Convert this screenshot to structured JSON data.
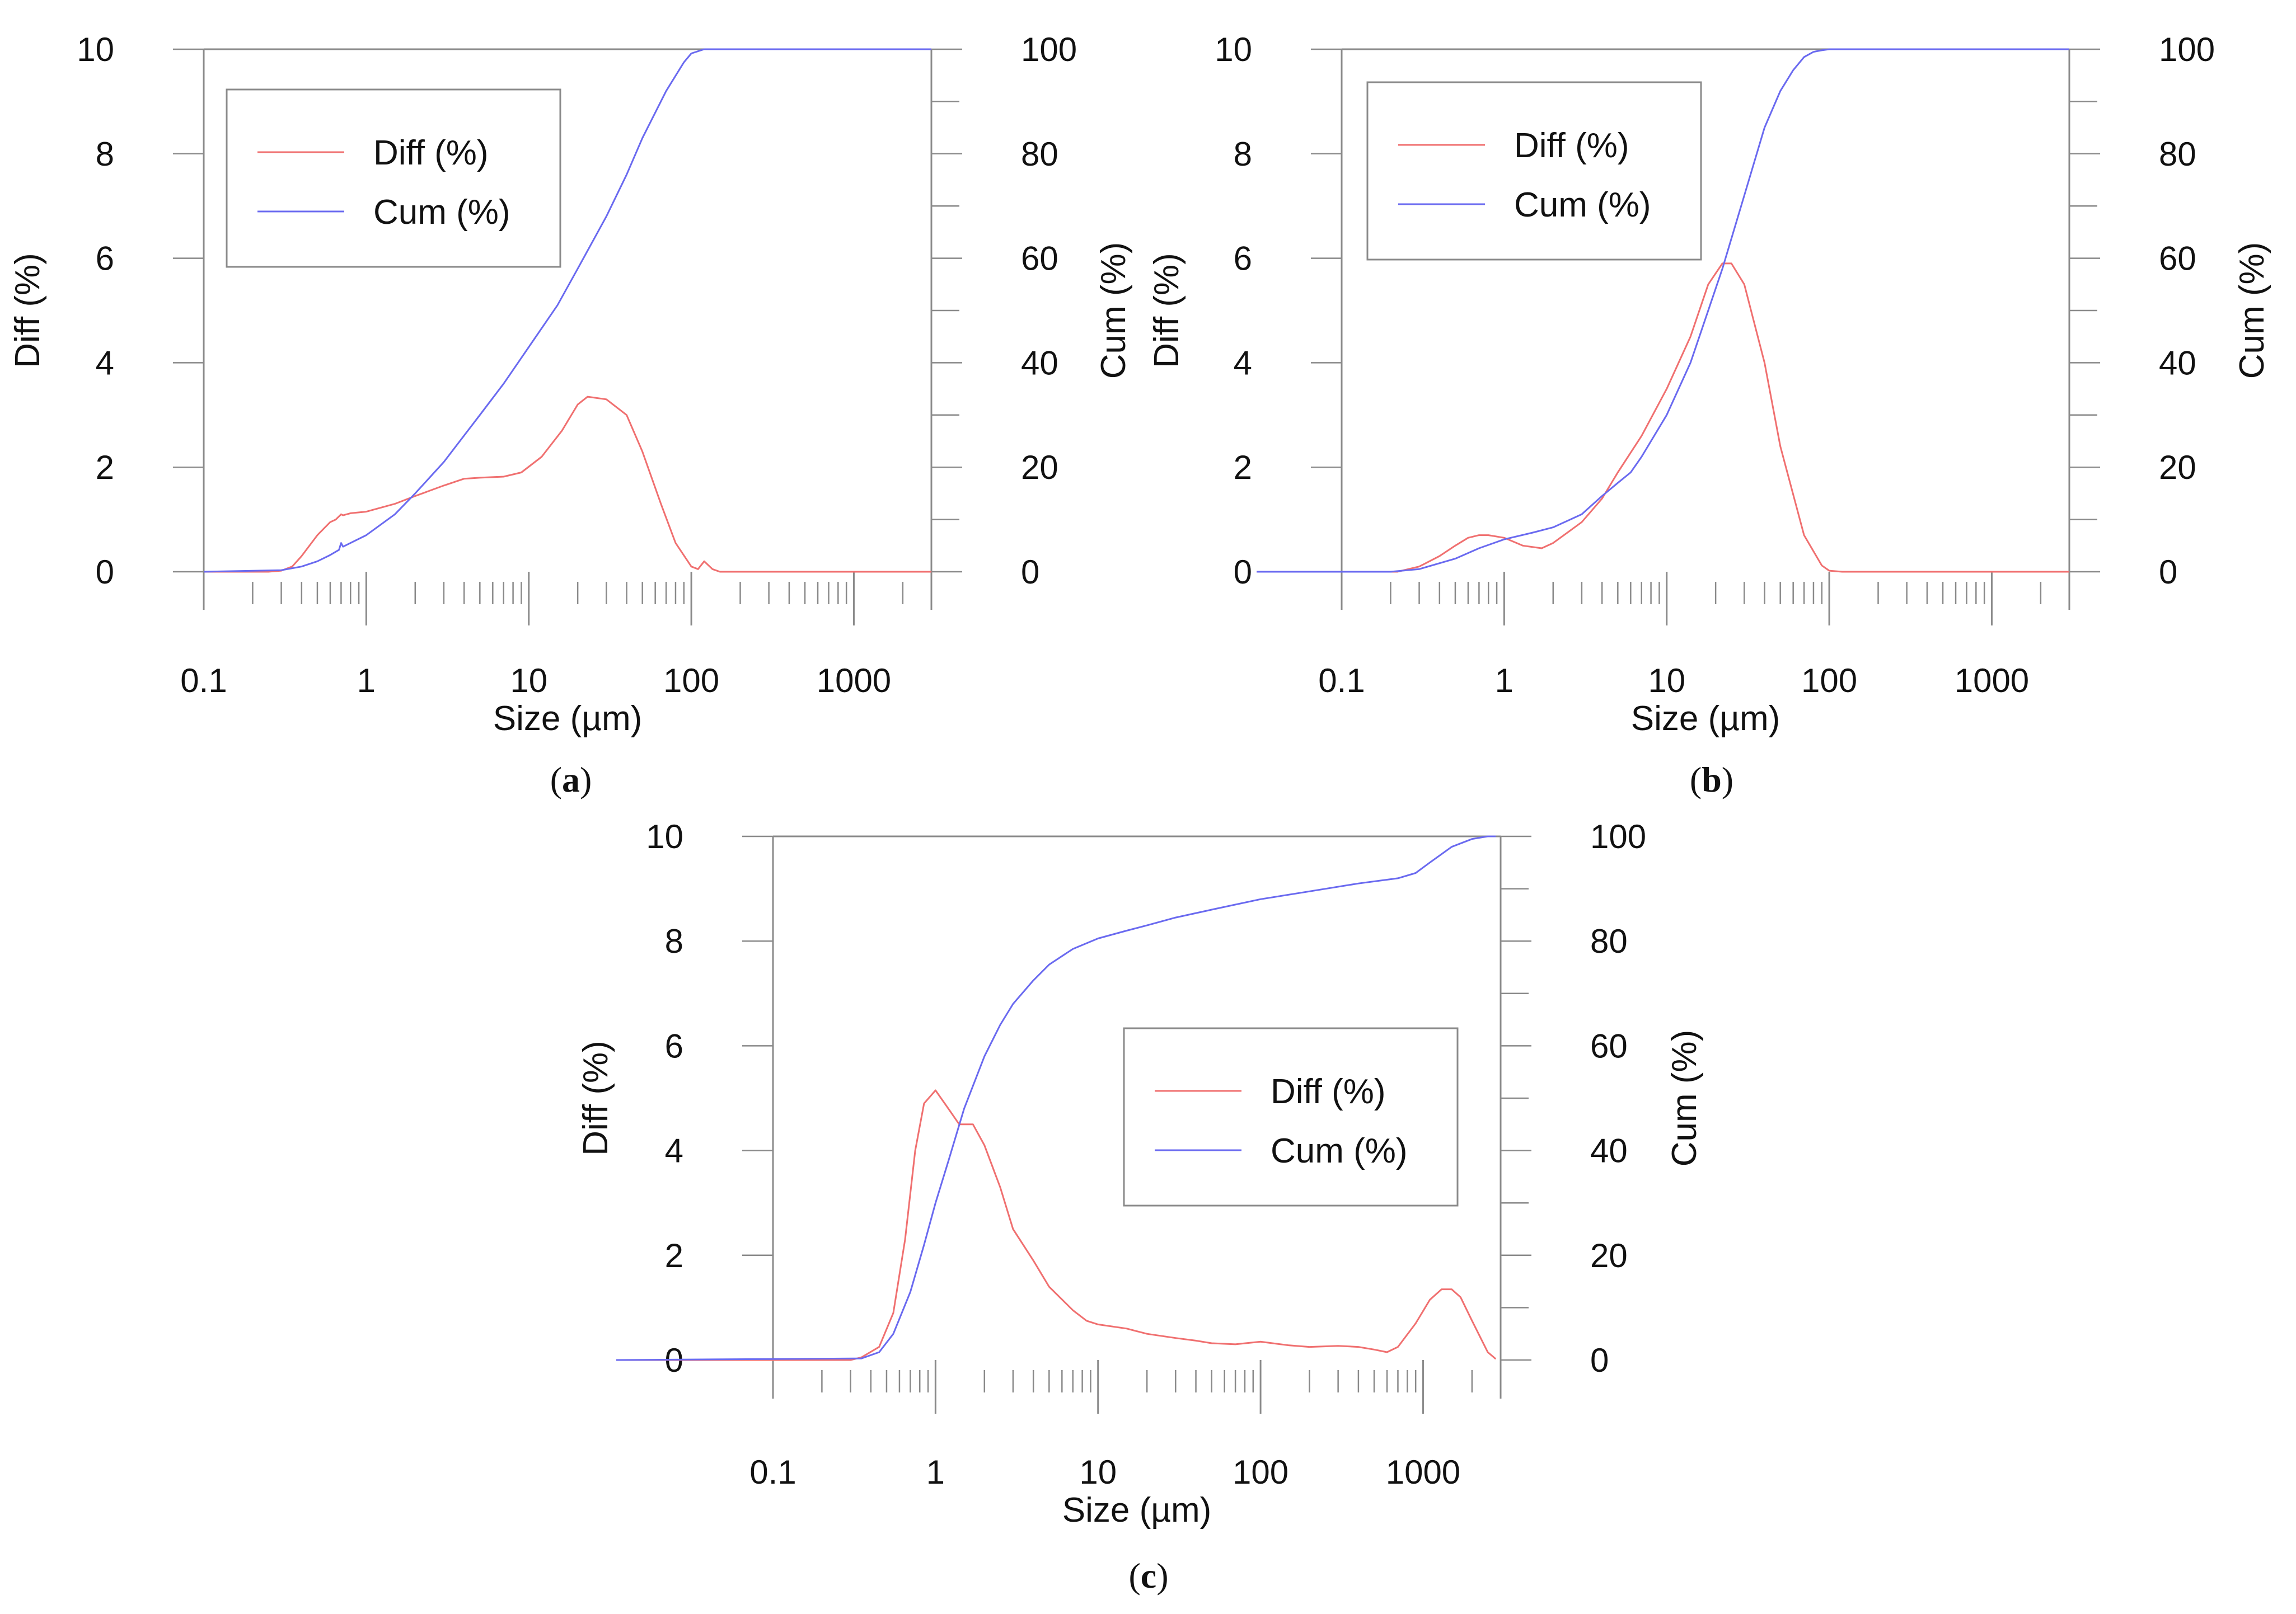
{
  "chart_data": [
    {
      "id": "a",
      "type": "line",
      "caption_letter": "a",
      "xlabel": "Size (µm)",
      "ylabel_left": "Diff (%)",
      "ylabel_right": "Cum (%)",
      "xscale": "log",
      "xlim": [
        0.1,
        3000
      ],
      "ylim_left": [
        0,
        10
      ],
      "ylim_right": [
        0,
        100
      ],
      "x_tick_labels": [
        {
          "value": 0.1,
          "label": "0.1"
        },
        {
          "value": 1,
          "label": "1"
        },
        {
          "value": 10,
          "label": "10"
        },
        {
          "value": 100,
          "label": "100"
        },
        {
          "value": 1000,
          "label": "1000"
        }
      ],
      "y_left_tick_labels": [
        {
          "value": 0,
          "label": "0"
        },
        {
          "value": 2,
          "label": "2"
        },
        {
          "value": 4,
          "label": "4"
        },
        {
          "value": 6,
          "label": "6"
        },
        {
          "value": 8,
          "label": "8"
        },
        {
          "value": 10,
          "label": "10"
        }
      ],
      "y_right_tick_labels": [
        {
          "value": 0,
          "label": "0"
        },
        {
          "value": 20,
          "label": "20"
        },
        {
          "value": 40,
          "label": "40"
        },
        {
          "value": 60,
          "label": "60"
        },
        {
          "value": 80,
          "label": "80"
        },
        {
          "value": 100,
          "label": "100"
        }
      ],
      "legend": {
        "placement": "top-left",
        "entries": [
          {
            "label": "Diff (%)",
            "series": "diff"
          },
          {
            "label": "Cum (%)",
            "series": "cum"
          }
        ]
      },
      "series": [
        {
          "name": "Diff (%)",
          "key": "diff",
          "axis": "left",
          "color": "#f07070",
          "x": [
            0.1,
            0.25,
            0.3,
            0.35,
            0.4,
            0.5,
            0.6,
            0.65,
            0.7,
            0.72,
            0.8,
            1.0,
            1.5,
            2.0,
            3.0,
            4.0,
            5.0,
            7.0,
            9.0,
            12.0,
            16.0,
            20.0,
            23.0,
            30.0,
            40.0,
            50.0,
            65.0,
            80.0,
            100.0,
            110.0,
            120.0,
            135.0,
            150.0,
            200.0,
            3000.0
          ],
          "y": [
            0,
            0,
            0.02,
            0.1,
            0.3,
            0.7,
            0.95,
            1.0,
            1.1,
            1.08,
            1.12,
            1.15,
            1.3,
            1.45,
            1.65,
            1.78,
            1.8,
            1.82,
            1.9,
            2.2,
            2.7,
            3.2,
            3.35,
            3.3,
            3.0,
            2.3,
            1.3,
            0.55,
            0.1,
            0.05,
            0.2,
            0.05,
            0,
            0,
            0
          ]
        },
        {
          "name": "Cum (%)",
          "key": "cum",
          "axis": "right",
          "color": "#6a6af0",
          "x": [
            0.1,
            0.3,
            0.4,
            0.5,
            0.6,
            0.68,
            0.7,
            0.72,
            1.0,
            1.5,
            2.0,
            3.0,
            5.0,
            7.0,
            10.0,
            15.0,
            20.0,
            30.0,
            40.0,
            50.0,
            70.0,
            90.0,
            100.0,
            120.0,
            3000.0
          ],
          "y": [
            0,
            0.3,
            1.0,
            2.0,
            3.2,
            4.2,
            5.5,
            4.8,
            7.0,
            11.0,
            15.0,
            21.0,
            30.0,
            36.0,
            43.0,
            51.0,
            58.0,
            68.0,
            76.0,
            83.0,
            92.0,
            97.5,
            99.2,
            100,
            100
          ]
        }
      ]
    },
    {
      "id": "b",
      "type": "line",
      "caption_letter": "b",
      "xlabel": "Size (µm)",
      "ylabel_left": "Diff (%)",
      "ylabel_right": "Cum (%)",
      "xscale": "log",
      "xlim": [
        0.1,
        3000
      ],
      "ylim_left": [
        0,
        10
      ],
      "ylim_right": [
        0,
        100
      ],
      "x_tick_labels": [
        {
          "value": 0.1,
          "label": "0.1"
        },
        {
          "value": 1,
          "label": "1"
        },
        {
          "value": 10,
          "label": "10"
        },
        {
          "value": 100,
          "label": "100"
        },
        {
          "value": 1000,
          "label": "1000"
        }
      ],
      "y_left_tick_labels": [
        {
          "value": 0,
          "label": "0"
        },
        {
          "value": 2,
          "label": "2"
        },
        {
          "value": 4,
          "label": "4"
        },
        {
          "value": 6,
          "label": "6"
        },
        {
          "value": 8,
          "label": "8"
        },
        {
          "value": 10,
          "label": "10"
        }
      ],
      "y_right_tick_labels": [
        {
          "value": 0,
          "label": "0"
        },
        {
          "value": 20,
          "label": "20"
        },
        {
          "value": 40,
          "label": "40"
        },
        {
          "value": 60,
          "label": "60"
        },
        {
          "value": 80,
          "label": "80"
        },
        {
          "value": 100,
          "label": "100"
        }
      ],
      "legend": {
        "placement": "top-left",
        "entries": [
          {
            "label": "Diff (%)",
            "series": "diff"
          },
          {
            "label": "Cum (%)",
            "series": "cum"
          }
        ]
      },
      "series": [
        {
          "name": "Diff (%)",
          "key": "diff",
          "axis": "left",
          "color": "#f07070",
          "x": [
            0.03,
            0.22,
            0.3,
            0.4,
            0.5,
            0.6,
            0.7,
            0.8,
            1.0,
            1.3,
            1.7,
            2.0,
            3.0,
            4.0,
            5.0,
            7.0,
            10.0,
            14.0,
            18.0,
            22.0,
            25.0,
            30.0,
            40.0,
            50.0,
            70.0,
            90.0,
            100.0,
            120.0,
            3000.0
          ],
          "y": [
            0,
            0,
            0.1,
            0.3,
            0.5,
            0.65,
            0.7,
            0.7,
            0.65,
            0.5,
            0.45,
            0.55,
            0.95,
            1.4,
            1.9,
            2.6,
            3.5,
            4.5,
            5.5,
            5.9,
            5.9,
            5.5,
            4.0,
            2.4,
            0.7,
            0.12,
            0.02,
            0,
            0
          ]
        },
        {
          "name": "Cum (%)",
          "key": "cum",
          "axis": "right",
          "color": "#6a6af0",
          "x": [
            0.03,
            0.2,
            0.3,
            0.5,
            0.7,
            1.0,
            1.5,
            2.0,
            3.0,
            4.0,
            5.0,
            6.0,
            7.0,
            10.0,
            14.0,
            18.0,
            22.0,
            30.0,
            40.0,
            50.0,
            60.0,
            70.0,
            80.0,
            90.0,
            100.0,
            120.0,
            3000.0
          ],
          "y": [
            0,
            0,
            0.5,
            2.5,
            4.5,
            6.2,
            7.5,
            8.5,
            11.0,
            14.5,
            17.0,
            19.0,
            22.0,
            30.0,
            40.0,
            50.0,
            58.0,
            72.0,
            85.0,
            92.0,
            96.0,
            98.5,
            99.5,
            99.8,
            100,
            100,
            100
          ]
        }
      ]
    },
    {
      "id": "c",
      "type": "line",
      "caption_letter": "c",
      "xlabel": "Size (µm)",
      "ylabel_left": "Diff (%)",
      "ylabel_right": "Cum (%)",
      "xscale": "log",
      "xlim": [
        0.1,
        3000
      ],
      "ylim_left": [
        0,
        10
      ],
      "ylim_right": [
        0,
        100
      ],
      "x_tick_labels": [
        {
          "value": 0.1,
          "label": "0.1"
        },
        {
          "value": 1,
          "label": "1"
        },
        {
          "value": 10,
          "label": "10"
        },
        {
          "value": 100,
          "label": "100"
        },
        {
          "value": 1000,
          "label": "1000"
        }
      ],
      "y_left_tick_labels": [
        {
          "value": 0,
          "label": "0"
        },
        {
          "value": 2,
          "label": "2"
        },
        {
          "value": 4,
          "label": "4"
        },
        {
          "value": 6,
          "label": "6"
        },
        {
          "value": 8,
          "label": "8"
        },
        {
          "value": 10,
          "label": "10"
        }
      ],
      "y_right_tick_labels": [
        {
          "value": 0,
          "label": "0"
        },
        {
          "value": 20,
          "label": "20"
        },
        {
          "value": 40,
          "label": "40"
        },
        {
          "value": 60,
          "label": "60"
        },
        {
          "value": 80,
          "label": "80"
        },
        {
          "value": 100,
          "label": "100"
        }
      ],
      "legend": {
        "placement": "center-right",
        "entries": [
          {
            "label": "Diff (%)",
            "series": "diff"
          },
          {
            "label": "Cum (%)",
            "series": "cum"
          }
        ]
      },
      "series": [
        {
          "name": "Diff (%)",
          "key": "diff",
          "axis": "left",
          "color": "#f07070",
          "x": [
            0.01,
            0.3,
            0.35,
            0.45,
            0.55,
            0.65,
            0.75,
            0.85,
            1.0,
            1.2,
            1.4,
            1.7,
            2.0,
            2.5,
            3.0,
            4.0,
            5.0,
            7.0,
            8.5,
            10.0,
            15.0,
            20.0,
            30.0,
            40.0,
            50.0,
            70.0,
            100.0,
            150.0,
            200.0,
            300.0,
            400.0,
            500.0,
            600.0,
            700.0,
            900.0,
            1100.0,
            1300.0,
            1500.0,
            1700.0,
            2000.0,
            2500.0,
            2800.0
          ],
          "y": [
            0,
            0,
            0.05,
            0.25,
            0.9,
            2.3,
            4.0,
            4.9,
            5.15,
            4.8,
            4.5,
            4.5,
            4.1,
            3.3,
            2.5,
            1.9,
            1.4,
            0.95,
            0.75,
            0.68,
            0.6,
            0.5,
            0.42,
            0.37,
            0.32,
            0.3,
            0.35,
            0.28,
            0.25,
            0.27,
            0.25,
            0.2,
            0.15,
            0.25,
            0.7,
            1.15,
            1.35,
            1.35,
            1.2,
            0.75,
            0.15,
            0.02
          ]
        },
        {
          "name": "Cum (%)",
          "key": "cum",
          "axis": "right",
          "color": "#6a6af0",
          "x": [
            0.01,
            0.35,
            0.45,
            0.55,
            0.7,
            0.85,
            1.0,
            1.2,
            1.5,
            2.0,
            2.5,
            3.0,
            4.0,
            5.0,
            7.0,
            10.0,
            15.0,
            20.0,
            30.0,
            50.0,
            100.0,
            200.0,
            400.0,
            700.0,
            900.0,
            1100.0,
            1500.0,
            2000.0,
            2500.0,
            2800.0
          ],
          "y": [
            0,
            0.3,
            1.5,
            5.0,
            13.0,
            22.0,
            30.0,
            38.0,
            48.0,
            58.0,
            64.0,
            68.0,
            72.5,
            75.5,
            78.5,
            80.5,
            82.0,
            83.0,
            84.5,
            86.0,
            88.0,
            89.5,
            91.0,
            92.0,
            93.0,
            95.0,
            98.0,
            99.5,
            100,
            100
          ]
        }
      ]
    }
  ]
}
